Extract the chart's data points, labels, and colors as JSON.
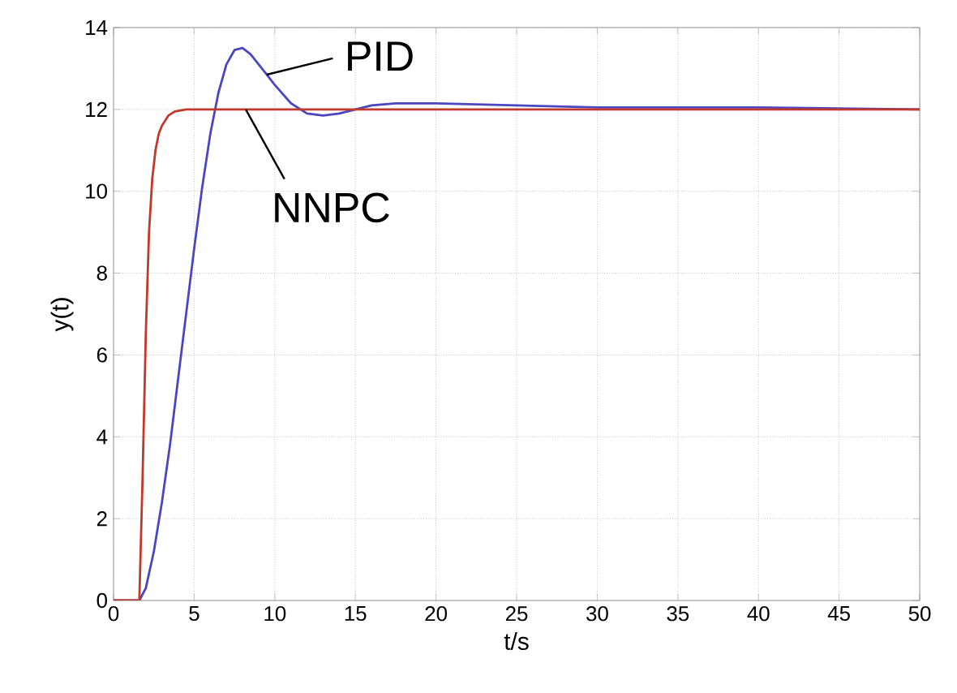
{
  "chart_data": {
    "type": "line",
    "xlabel": "t/s",
    "ylabel": "y(t)",
    "xlim": [
      0,
      50
    ],
    "ylim": [
      0,
      14
    ],
    "xticks": [
      0,
      5,
      10,
      15,
      20,
      25,
      30,
      35,
      40,
      45,
      50
    ],
    "yticks": [
      0,
      2,
      4,
      6,
      8,
      10,
      12,
      14
    ],
    "grid": true,
    "legend": false,
    "series": [
      {
        "name": "PID",
        "color": "#4a46c0",
        "x": [
          0,
          1.6,
          2.0,
          2.5,
          3.0,
          3.5,
          4.0,
          4.5,
          5.0,
          5.5,
          6.0,
          6.5,
          7.0,
          7.5,
          8.0,
          8.5,
          9.0,
          9.5,
          10.0,
          11.0,
          12.0,
          13.0,
          14.0,
          15.0,
          16.0,
          17.5,
          20.0,
          25.0,
          30.0,
          40.0,
          50.0
        ],
        "values": [
          0,
          0,
          0.3,
          1.2,
          2.4,
          3.8,
          5.4,
          7.0,
          8.6,
          10.1,
          11.4,
          12.4,
          13.1,
          13.45,
          13.5,
          13.35,
          13.1,
          12.85,
          12.6,
          12.15,
          11.9,
          11.85,
          11.9,
          12.0,
          12.1,
          12.15,
          12.15,
          12.1,
          12.05,
          12.05,
          12.0
        ]
      },
      {
        "name": "NNPC",
        "color": "#c0392b",
        "x": [
          0,
          1.6,
          1.8,
          2.0,
          2.2,
          2.4,
          2.6,
          2.8,
          3.0,
          3.4,
          3.8,
          4.5,
          6.0,
          50.0
        ],
        "values": [
          0,
          0,
          3.0,
          6.5,
          9.0,
          10.3,
          11.0,
          11.4,
          11.6,
          11.85,
          11.95,
          12.0,
          12.0,
          12.0
        ]
      }
    ]
  }
}
